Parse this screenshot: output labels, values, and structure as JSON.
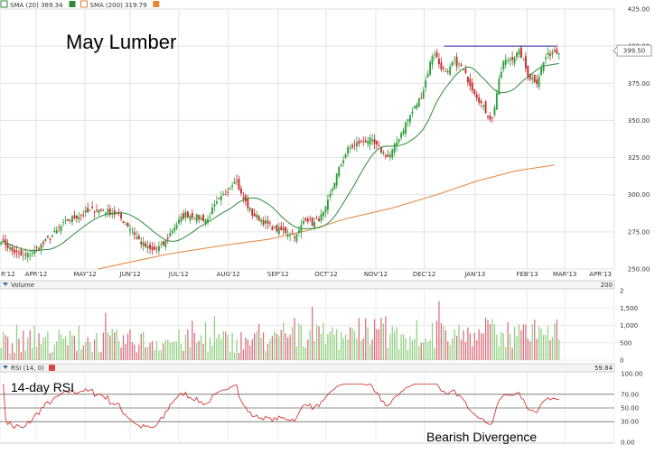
{
  "chart_data": {
    "type": "candlestick",
    "title": "May Lumber",
    "legend": [
      {
        "label": "SMA (20) 389.34",
        "color": "#2e8b3a"
      },
      {
        "label": "SMA (200) 319.79",
        "color": "#e8833a"
      }
    ],
    "last_price_label": "399.50",
    "price_axis": {
      "ticks": [
        "425.00",
        "400.00",
        "375.00",
        "350.00",
        "325.00",
        "300.00",
        "275.00",
        "250.00"
      ],
      "ylim": [
        250,
        425
      ]
    },
    "x_ticks": [
      "R'12",
      "APR'12",
      "MAY'12",
      "JUN'12",
      "JUL'12",
      "AUG'12",
      "SEP'12",
      "OCT'12",
      "NOV'12",
      "DEC'12",
      "JAN'13",
      "FEB'13",
      "MAR'13",
      "APR'13"
    ],
    "x_tick_fracs": [
      0,
      0.0588,
      0.1383,
      0.2118,
      0.2908,
      0.3716,
      0.4526,
      0.5309,
      0.6118,
      0.6906,
      0.7732,
      0.8581,
      0.9193,
      1.0
    ],
    "resistance_level": 400,
    "close_anchors": [
      [
        0,
        270
      ],
      [
        0.02,
        262
      ],
      [
        0.04,
        258
      ],
      [
        0.06,
        262
      ],
      [
        0.09,
        272
      ],
      [
        0.12,
        283
      ],
      [
        0.14,
        286
      ],
      [
        0.17,
        290
      ],
      [
        0.19,
        289
      ],
      [
        0.21,
        286
      ],
      [
        0.23,
        278
      ],
      [
        0.25,
        268
      ],
      [
        0.27,
        262
      ],
      [
        0.29,
        266
      ],
      [
        0.31,
        278
      ],
      [
        0.33,
        287
      ],
      [
        0.35,
        285
      ],
      [
        0.37,
        283
      ],
      [
        0.38,
        291
      ],
      [
        0.4,
        300
      ],
      [
        0.41,
        305
      ],
      [
        0.42,
        312
      ],
      [
        0.43,
        300
      ],
      [
        0.45,
        287
      ],
      [
        0.47,
        282
      ],
      [
        0.49,
        277
      ],
      [
        0.51,
        275
      ],
      [
        0.53,
        272
      ],
      [
        0.545,
        285
      ],
      [
        0.56,
        280
      ],
      [
        0.58,
        288
      ],
      [
        0.6,
        312
      ],
      [
        0.62,
        330
      ],
      [
        0.64,
        335
      ],
      [
        0.66,
        337
      ],
      [
        0.68,
        330
      ],
      [
        0.695,
        325
      ],
      [
        0.71,
        336
      ],
      [
        0.725,
        348
      ],
      [
        0.74,
        358
      ],
      [
        0.755,
        368
      ],
      [
        0.77,
        390
      ],
      [
        0.775,
        397
      ],
      [
        0.785,
        388
      ],
      [
        0.8,
        380
      ],
      [
        0.81,
        390
      ],
      [
        0.825,
        386
      ],
      [
        0.84,
        375
      ],
      [
        0.855,
        365
      ],
      [
        0.87,
        355
      ],
      [
        0.88,
        350
      ],
      [
        0.89,
        372
      ],
      [
        0.9,
        389
      ],
      [
        0.915,
        392
      ],
      [
        0.93,
        396
      ],
      [
        0.945,
        380
      ],
      [
        0.96,
        376
      ],
      [
        0.975,
        392
      ],
      [
        0.99,
        397
      ],
      [
        1.0,
        397
      ]
    ],
    "volume_panel": {
      "title": "Volume",
      "header_value": "200",
      "ticks": [
        "2",
        "1,500",
        "1,000",
        "500",
        "0"
      ],
      "ylim": [
        0,
        2000
      ]
    },
    "rsi_panel": {
      "title": "RSI (14, 0)",
      "value": "59.84",
      "ticks": [
        "100.00",
        "70.00",
        "50.00",
        "30.00",
        "0.00"
      ],
      "levels": [
        70,
        50,
        30
      ],
      "ylim": [
        0,
        100
      ],
      "label": "14-day RSI",
      "annotation": "Bearish Divergence"
    },
    "colors": {
      "up": "#2e9e3a",
      "down": "#c42b2b",
      "sma20": "#2e8b3a",
      "sma200": "#e8833a",
      "rsi": "#d62020",
      "resistance": "#2424a0"
    }
  }
}
